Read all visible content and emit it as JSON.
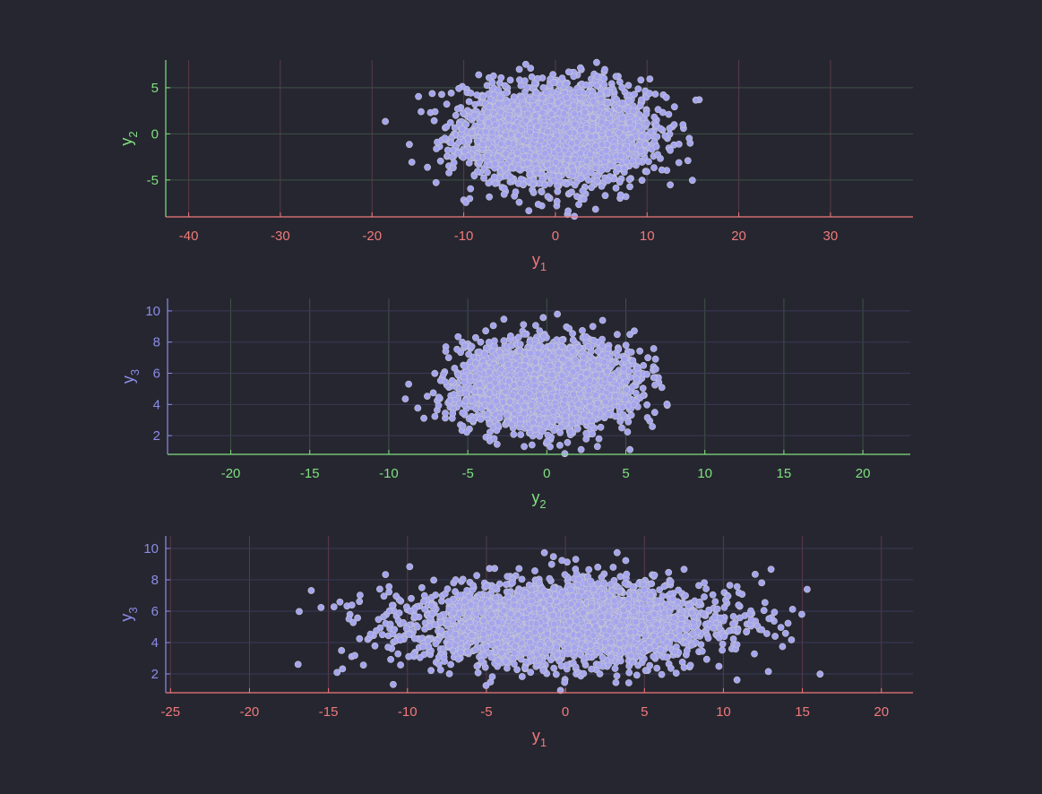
{
  "colors": {
    "background": "#262630",
    "marker_fill": "#a5a5ee",
    "marker_edge": "#c8c8d2",
    "y1": "#f07a7a",
    "y2": "#7fe07f",
    "y3": "#8c8ce8",
    "grid_red": "#5a3a48",
    "grid_green": "#3e5246",
    "grid_blue": "#3a3a5a"
  },
  "chart_data": [
    {
      "type": "scatter",
      "title": "",
      "xlabel": {
        "base": "y",
        "sub": "1"
      },
      "ylabel": {
        "base": "y",
        "sub": "2"
      },
      "xlim": [
        -42.5,
        39
      ],
      "ylim": [
        -9,
        8
      ],
      "xticks": [
        -40,
        -30,
        -20,
        -10,
        0,
        10,
        20,
        30
      ],
      "yticks": [
        -5,
        0,
        5
      ],
      "grid": true,
      "x_color": "y1",
      "y_color": "y2",
      "points": {
        "count": 3000,
        "x_mean": 0,
        "x_sd": 5,
        "y_mean": 0,
        "y_sd": 2.6,
        "x_range": [
          -20.2,
          16.6
        ],
        "y_range": [
          -9,
          7.9
        ]
      }
    },
    {
      "type": "scatter",
      "title": "",
      "xlabel": {
        "base": "y",
        "sub": "2"
      },
      "ylabel": {
        "base": "y",
        "sub": "3"
      },
      "xlim": [
        -24,
        23
      ],
      "ylim": [
        0.8,
        10.8
      ],
      "xticks": [
        -20,
        -15,
        -10,
        -5,
        0,
        5,
        10,
        15,
        20
      ],
      "yticks": [
        2,
        4,
        6,
        8,
        10
      ],
      "grid": true,
      "x_color": "y2",
      "y_color": "y3",
      "points": {
        "count": 3000,
        "x_mean": 0,
        "x_sd": 2.6,
        "y_mean": 5.2,
        "y_sd": 1.35,
        "x_range": [
          -9.1,
          8
        ],
        "y_range": [
          0.8,
          10.7
        ]
      }
    },
    {
      "type": "scatter",
      "title": "",
      "xlabel": {
        "base": "y",
        "sub": "1"
      },
      "ylabel": {
        "base": "y",
        "sub": "3"
      },
      "xlim": [
        -25.3,
        22
      ],
      "ylim": [
        0.8,
        10.8
      ],
      "xticks": [
        -25,
        -20,
        -15,
        -10,
        -5,
        0,
        5,
        10,
        15,
        20
      ],
      "yticks": [
        2,
        4,
        6,
        8,
        10
      ],
      "grid": true,
      "x_color": "y1",
      "y_color": "y3",
      "points": {
        "count": 3000,
        "x_mean": 0,
        "x_sd": 5,
        "y_mean": 5.2,
        "y_sd": 1.35,
        "x_range": [
          -20.2,
          16.6
        ],
        "y_range": [
          0.8,
          10.7
        ]
      }
    }
  ]
}
